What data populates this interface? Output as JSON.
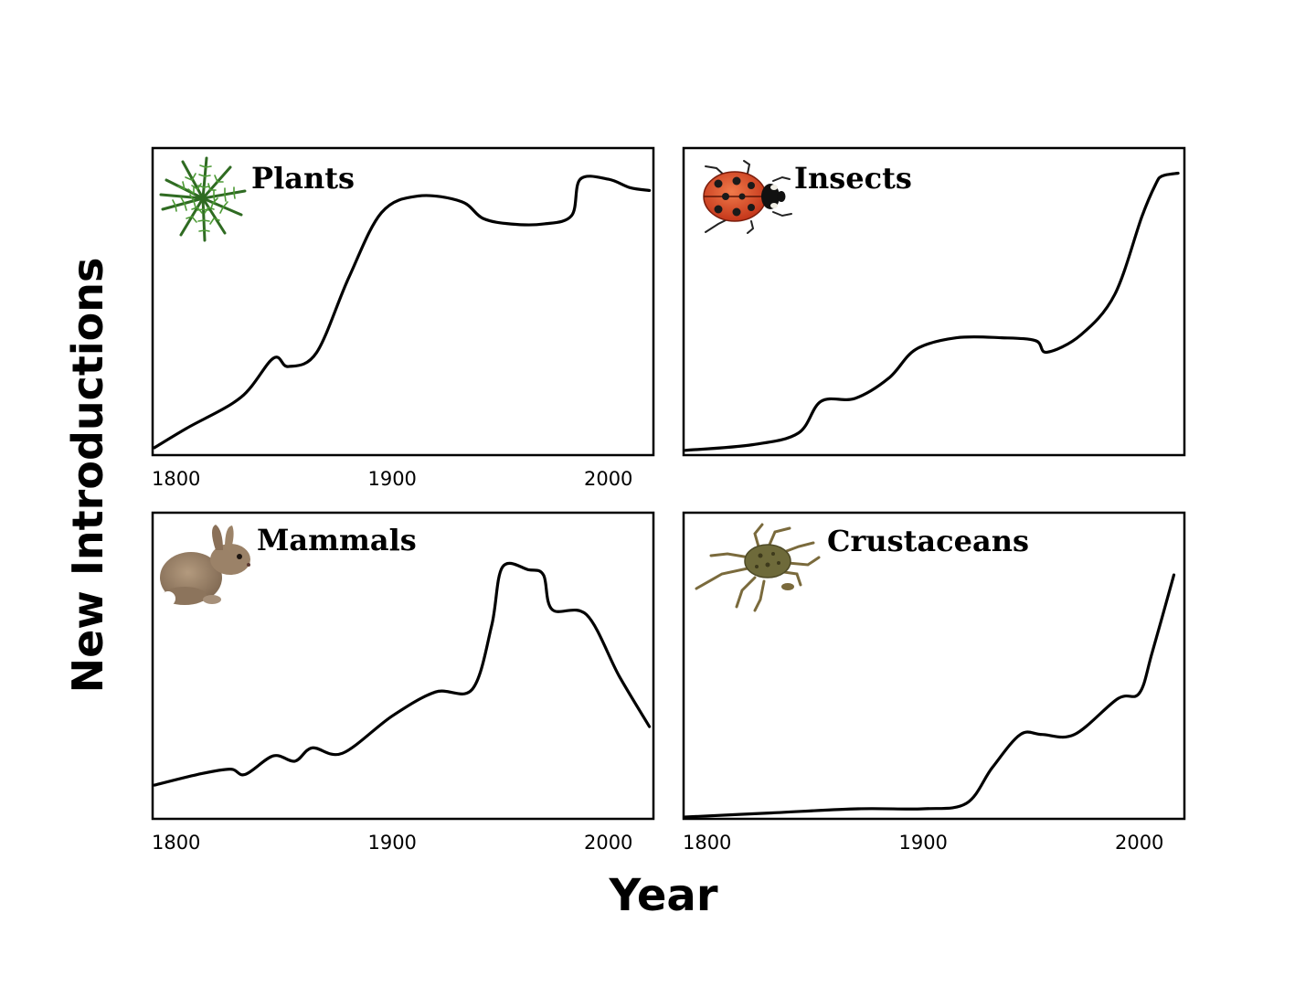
{
  "xlabel": "Year",
  "ylabel": "New Introductions",
  "chart_data": [
    {
      "type": "line",
      "title": "Plants",
      "icon": "fern-icon",
      "xlabel": "",
      "ylabel": "",
      "xlim": [
        1790,
        2020
      ],
      "ylim": [
        0,
        100
      ],
      "xticks": [
        1800,
        1900,
        2000
      ],
      "show_xticks": true,
      "series": [
        {
          "x": [
            1790,
            1805,
            1830,
            1845,
            1852,
            1865,
            1880,
            1895,
            1912,
            1932,
            1942,
            1955,
            1970,
            1983,
            1987,
            2000,
            2010,
            2019
          ],
          "y": [
            2,
            9,
            20,
            34,
            31,
            36,
            63,
            86,
            92,
            90,
            84,
            82,
            82,
            85,
            98,
            98,
            95,
            94
          ]
        }
      ]
    },
    {
      "type": "line",
      "title": "Insects",
      "icon": "ladybug-icon",
      "xlabel": "",
      "ylabel": "",
      "xlim": [
        1800,
        2020
      ],
      "ylim": [
        0,
        100
      ],
      "xticks": [
        1800,
        1900,
        2000
      ],
      "show_xticks": false,
      "series": [
        {
          "x": [
            1800,
            1830,
            1850,
            1860,
            1875,
            1890,
            1902,
            1920,
            1940,
            1955,
            1960,
            1975,
            1990,
            2002,
            2008,
            2011,
            2018
          ],
          "y": [
            1,
            3,
            7,
            18,
            19,
            26,
            36,
            40,
            40,
            39,
            35,
            41,
            55,
            82,
            93,
            96,
            97
          ]
        }
      ]
    },
    {
      "type": "line",
      "title": "Mammals",
      "icon": "rabbit-icon",
      "xlabel": "",
      "ylabel": "",
      "xlim": [
        1790,
        2020
      ],
      "ylim": [
        0,
        100
      ],
      "xticks": [
        1800,
        1900,
        2000
      ],
      "show_xticks": true,
      "series": [
        {
          "x": [
            1790,
            1810,
            1825,
            1832,
            1845,
            1855,
            1863,
            1877,
            1900,
            1920,
            1937,
            1946,
            1951,
            1963,
            1970,
            1974,
            1990,
            2005,
            2019
          ],
          "y": [
            12,
            16,
            18,
            16,
            23,
            21,
            26,
            24,
            38,
            47,
            48,
            72,
            94,
            93,
            91,
            78,
            76,
            53,
            34
          ]
        }
      ]
    },
    {
      "type": "line",
      "title": "Crustaceans",
      "icon": "crab-icon",
      "xlabel": "",
      "ylabel": "",
      "xlim": [
        1790,
        2020
      ],
      "ylim": [
        0,
        100
      ],
      "xticks": [
        1800,
        1900,
        2000
      ],
      "show_xticks": true,
      "series": [
        {
          "x": [
            1790,
            1830,
            1870,
            1900,
            1920,
            1932,
            1945,
            1955,
            1970,
            1990,
            2000,
            2006,
            2016
          ],
          "y": [
            0,
            1.5,
            3,
            3,
            5,
            18,
            30,
            30,
            30,
            43,
            45,
            60,
            88
          ]
        }
      ]
    }
  ]
}
